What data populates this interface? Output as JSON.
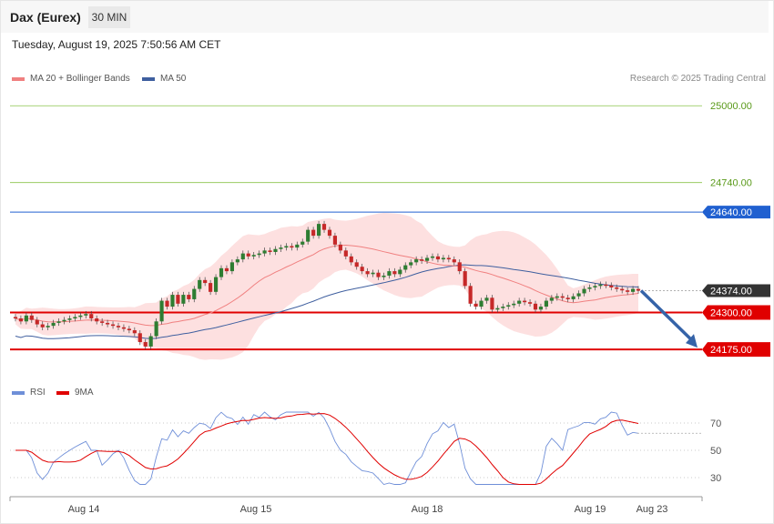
{
  "header": {
    "title": "Dax (Eurex)",
    "timeframe": "30 MIN",
    "datetime": "Tuesday, August 19, 2025 7:50:56 AM CET"
  },
  "legend": {
    "ma20": "MA 20 + Bollinger Bands",
    "ma50": "MA 50",
    "credit": "Research © 2025 Trading Central",
    "rsi": "RSI",
    "ma9": "9MA"
  },
  "colors": {
    "ma20": "#f08080",
    "ma50": "#3f5f9f",
    "band": "#fde0e0",
    "up": "#2e7d32",
    "down": "#c62828",
    "support": "#e00000",
    "resistance_green": "#8bc34a",
    "blue_level": "#2060d0",
    "rsi": "#6f8fd8",
    "rsi_ma": "#e00000"
  },
  "chart_data": {
    "type": "candlestick",
    "ylim": [
      24080,
      25050
    ],
    "levels": [
      {
        "value": 25000.0,
        "label": "25000.00",
        "style": "green-text"
      },
      {
        "value": 24740.0,
        "label": "24740.00",
        "style": "green-text"
      },
      {
        "value": 24640.0,
        "label": "24640.00",
        "style": "blue-tag"
      },
      {
        "value": 24374.0,
        "label": "24374.00",
        "style": "dark-tag"
      },
      {
        "value": 24300.0,
        "label": "24300.00",
        "style": "red-tag"
      },
      {
        "value": 24175.0,
        "label": "24175.00",
        "style": "red-tag"
      }
    ],
    "forecast_arrow": {
      "from": 24374,
      "to": 24175
    },
    "x_labels": [
      "Aug 14",
      "Aug 15",
      "Aug 18",
      "Aug 19",
      "Aug 23"
    ],
    "close": [
      24280,
      24270,
      24290,
      24275,
      24260,
      24250,
      24255,
      24265,
      24270,
      24275,
      24280,
      24285,
      24290,
      24295,
      24280,
      24270,
      24265,
      24260,
      24255,
      24250,
      24245,
      24240,
      24230,
      24200,
      24185,
      24220,
      24270,
      24340,
      24320,
      24360,
      24330,
      24360,
      24345,
      24380,
      24410,
      24400,
      24370,
      24420,
      24450,
      24440,
      24470,
      24480,
      24500,
      24490,
      24495,
      24500,
      24510,
      24505,
      24515,
      24520,
      24525,
      24520,
      24530,
      24540,
      24580,
      24560,
      24600,
      24580,
      24560,
      24530,
      24510,
      24490,
      24470,
      24455,
      24440,
      24430,
      24435,
      24420,
      24425,
      24440,
      24430,
      24445,
      24460,
      24470,
      24480,
      24475,
      24485,
      24490,
      24480,
      24485,
      24480,
      24470,
      24440,
      24390,
      24330,
      24320,
      24340,
      24350,
      24310,
      24315,
      24320,
      24325,
      24330,
      24340,
      24335,
      24330,
      24310,
      24320,
      24340,
      24350,
      24355,
      24350,
      24345,
      24355,
      24365,
      24380,
      24385,
      24390,
      24395,
      24392,
      24385,
      24380,
      24375,
      24370,
      24380,
      24374
    ],
    "rsi_ylim": [
      20,
      80
    ],
    "rsi_labels": [
      70,
      50,
      30
    ]
  }
}
